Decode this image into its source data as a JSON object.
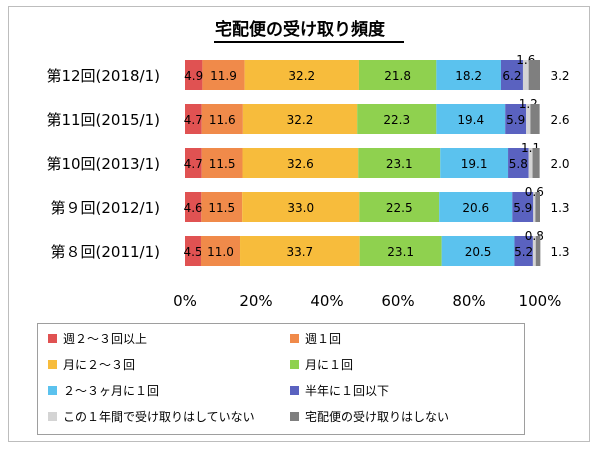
{
  "chart_data": {
    "type": "bar",
    "orientation": "horizontal",
    "stacked": "percent",
    "title": "宅配便の受け取り頻度",
    "categories": [
      "第12回(2018/1)",
      "第11回(2015/1)",
      "第10回(2013/1)",
      "第９回(2012/1)",
      "第８回(2011/1)"
    ],
    "series": [
      {
        "name": "週２～３回以上",
        "color": "#e05252",
        "values": [
          4.9,
          4.7,
          4.7,
          4.6,
          4.5
        ],
        "labels": [
          "4.9",
          "4.7",
          "4.7",
          "4.6",
          "4.5"
        ]
      },
      {
        "name": "週１回",
        "color": "#f08a4a",
        "values": [
          11.9,
          11.6,
          11.5,
          11.5,
          11.0
        ],
        "labels": [
          "11.9",
          "11.6",
          "11.5",
          "11.5",
          "11.0"
        ]
      },
      {
        "name": "月に２～３回",
        "color": "#f7bc3c",
        "values": [
          32.2,
          32.2,
          32.6,
          33.0,
          33.7
        ],
        "labels": [
          "32.2",
          "32.2",
          "32.6",
          "33.0",
          "33.7"
        ]
      },
      {
        "name": "月に１回",
        "color": "#8fd14f",
        "values": [
          21.8,
          22.3,
          23.1,
          22.5,
          23.1
        ],
        "labels": [
          "21.8",
          "22.3",
          "23.1",
          "22.5",
          "23.1"
        ]
      },
      {
        "name": "２～３ヶ月に１回",
        "color": "#5bc2ee",
        "values": [
          18.2,
          19.4,
          19.1,
          20.6,
          20.5
        ],
        "labels": [
          "18.2",
          "19.4",
          "19.1",
          "20.6",
          "20.5"
        ]
      },
      {
        "name": "半年に１回以下",
        "color": "#5a62c0",
        "values": [
          6.2,
          5.9,
          5.8,
          5.9,
          5.2
        ],
        "labels": [
          "6.2",
          "5.9",
          "5.8",
          "5.9",
          "5.2"
        ]
      },
      {
        "name": "この１年間で受け取りはしていない",
        "color": "#d4d4d4",
        "values": [
          1.6,
          1.2,
          1.1,
          0.6,
          0.8
        ],
        "labels": [
          "1.6",
          "1.2",
          "1.1",
          "0.6",
          "0.8"
        ]
      },
      {
        "name": "宅配便の受け取りはしない",
        "color": "#7f7f7f",
        "values": [
          3.2,
          2.6,
          2.0,
          1.3,
          1.3
        ],
        "labels": [
          "3.2",
          "2.6",
          "2.0",
          "1.3",
          "1.3"
        ]
      }
    ],
    "x_ticks": [
      "0%",
      "20%",
      "40%",
      "60%",
      "80%",
      "100%"
    ],
    "xlim": [
      0,
      100
    ],
    "grid": false,
    "legend_position": "bottom"
  }
}
